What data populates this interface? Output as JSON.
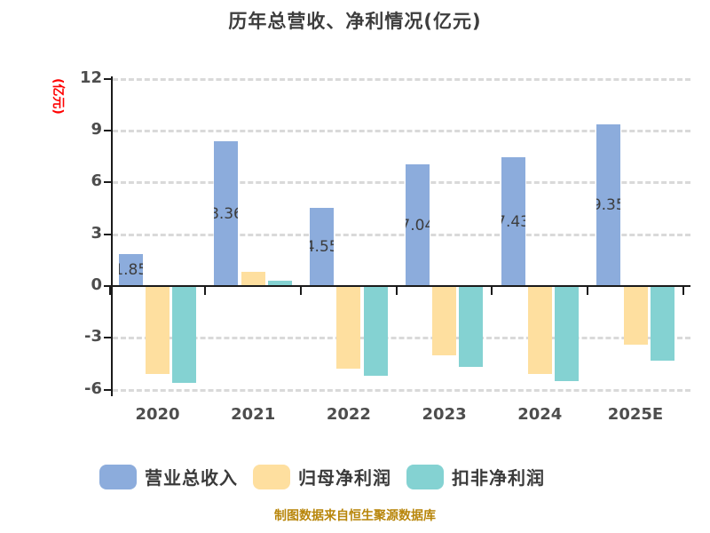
{
  "title": "历年总营收、净利情况(亿元)",
  "y_axis": {
    "label": "(亿元)",
    "label_color": "#ff0000",
    "ticks": [
      12,
      9,
      6,
      3,
      0,
      -3,
      -6
    ]
  },
  "x_axis": {
    "categories": [
      "2020",
      "2021",
      "2022",
      "2023",
      "2024",
      "2025E"
    ]
  },
  "chart_data": {
    "type": "bar",
    "title": "历年总营收、净利情况(亿元)",
    "categories": [
      "2020",
      "2021",
      "2022",
      "2023",
      "2024",
      "2025E"
    ],
    "series": [
      {
        "name": "营业总收入",
        "color": "#8cacdc",
        "values": [
          1.85,
          8.36,
          4.55,
          7.04,
          7.43,
          9.35
        ],
        "bar_labels": [
          "1.85",
          "8.36",
          "4.55",
          "7.04",
          "7.43",
          "9.35"
        ]
      },
      {
        "name": "归母净利润",
        "color": "#fedf9f",
        "values": [
          -5.1,
          0.8,
          -4.8,
          -4.0,
          -5.1,
          -3.4
        ]
      },
      {
        "name": "扣非净利润",
        "color": "#84d2d2",
        "values": [
          -5.6,
          0.3,
          -5.2,
          -4.7,
          -5.5,
          -4.3
        ]
      }
    ],
    "ylabel": "(亿元)",
    "ylim": [
      -6,
      12
    ],
    "grid": "dashed-horizontal",
    "legend_position": "bottom"
  },
  "legend": {
    "items": [
      {
        "label": "营业总收入",
        "color": "#8cacdc"
      },
      {
        "label": "归母净利润",
        "color": "#fedf9f"
      },
      {
        "label": "扣非净利润",
        "color": "#84d2d2"
      }
    ]
  },
  "footer": {
    "text": "制图数据来自恒生聚源数据库",
    "color": "#b8860b"
  }
}
